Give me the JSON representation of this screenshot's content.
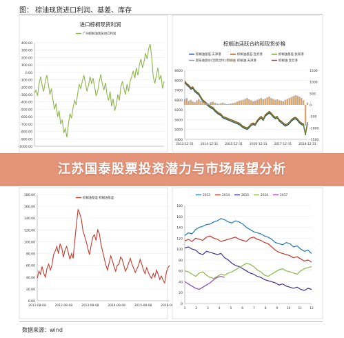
{
  "header": {
    "figure_title": "图：  棕油现货进口利润、基差、库存"
  },
  "banner": {
    "text": "江苏国泰股票投资潜力与市场展望分析"
  },
  "source": {
    "text": "数据来源：wind"
  },
  "colors": {
    "banner_bg": "#e28c6e",
    "green_line": "#8db54b",
    "red_line": "#c0392b"
  },
  "chart_data": [
    {
      "id": "import-profit",
      "type": "line",
      "title": "进口棕榈现货利润",
      "legend": [
        "广州棕榈油现货进口利润"
      ],
      "y_ticks": [
        "400.00",
        "300.00",
        "200.00",
        "100.00",
        "0.00",
        "-100.00",
        "-200.00",
        "-300.00",
        "-400.00",
        "-500.00",
        "-600.00",
        "-700.00",
        "-800.00",
        "-900.00",
        "-1000.00"
      ],
      "ylim": [
        -1000,
        400
      ],
      "series": [
        {
          "color": "#8db54b",
          "values": [
            -280,
            -240,
            -320,
            -150,
            -60,
            -180,
            -260,
            -120,
            -40,
            -160,
            -300,
            -220,
            -380,
            -500,
            -420,
            -600,
            -520,
            -700,
            -640,
            -820,
            -760,
            -880,
            -700,
            -560,
            -620,
            -480,
            -380,
            -440,
            -280,
            -160,
            -220,
            -120,
            -40,
            -140,
            -260,
            -180,
            -60,
            -150,
            -80,
            -200,
            -320,
            -250,
            -120,
            -30,
            -160,
            -240,
            -140,
            -300,
            -380,
            -260,
            -460,
            -360,
            -520,
            -440,
            -300,
            -380,
            -200,
            -120,
            -220,
            -300,
            -160,
            -260,
            -120,
            -60,
            20,
            -80,
            60,
            -40,
            100,
            180,
            60,
            140,
            260,
            180,
            320,
            380,
            200,
            -60,
            -150,
            -40,
            60,
            -100,
            -40,
            -220,
            -120
          ]
        }
      ]
    },
    {
      "id": "palm-basis",
      "type": "line",
      "title": "棕榈油活跃合约和现货价格",
      "legend": [
        "棕榈油基差:天津港",
        "棕榈油基差:连云港",
        "棕榈油基差:张家港",
        "期货收盘价(活跃合约):棕榈油",
        "棕榈油:天津港",
        "棕榈油:连云港"
      ],
      "y_ticks_left": [
        "8600",
        "8000",
        "7400",
        "6800",
        "6200",
        "5600",
        "5000",
        "4400"
      ],
      "y_ticks_right": [
        "1500",
        "1000",
        "500",
        "0",
        "-500",
        "-1000",
        "-1500"
      ],
      "x_ticks": [
        "2013-12-31",
        "2014-12-31",
        "2015-12-31",
        "2016-12-31",
        "2017-12-31",
        "2018-12-31"
      ],
      "series": [
        {
          "name": "期货收盘价(活跃合约):棕榈油",
          "color": "#1f3f7f",
          "values": [
            7850,
            7700,
            7600,
            7450,
            7500,
            7300,
            7200,
            7100,
            6900,
            6700,
            6600,
            6500,
            6400,
            6300,
            6250,
            6100,
            6000,
            5900,
            5850,
            5700,
            5650,
            5600,
            5550,
            5500,
            5450,
            5400,
            5350,
            5300,
            5200,
            5100,
            5050,
            5000,
            5100,
            5250,
            5300,
            5250,
            5450,
            5600,
            5700,
            5550,
            5800,
            5900,
            6000,
            5900,
            5750,
            5650,
            5700,
            5500,
            5400,
            5300,
            5200,
            5250,
            5350,
            5500,
            5600,
            5650,
            5550,
            5400,
            5300,
            5250,
            4650,
            5350
          ]
        },
        {
          "name": "棕榈油:天津港",
          "color": "#8b4513",
          "values": [
            7950,
            7800,
            7700,
            7550,
            7600,
            7400,
            7300,
            7200,
            7000,
            6800,
            6700,
            6600,
            6500,
            6400,
            6350,
            6200,
            6100,
            6000,
            5950,
            5800,
            5750,
            5700,
            5650,
            5600,
            5550,
            5500,
            5450,
            5400,
            5300,
            5200,
            5150,
            5100,
            5200,
            5350,
            5400,
            5350,
            5550,
            5700,
            5800,
            5650,
            5900,
            6000,
            6100,
            6000,
            5850,
            5750,
            5800,
            5600,
            5500,
            5400,
            5300,
            5350,
            5450,
            5600,
            5700,
            5750,
            5650,
            5500,
            5400,
            5350,
            4750,
            5450
          ]
        },
        {
          "name": "棕榈油:连云港",
          "color": "#6b8e23",
          "values": [
            7900,
            7750,
            7650,
            7500,
            7550,
            7350,
            7250,
            7150,
            6950,
            6750,
            6650,
            6550,
            6450,
            6350,
            6300,
            6150,
            6050,
            5950,
            5900,
            5750,
            5700,
            5650,
            5600,
            5550,
            5500,
            5450,
            5400,
            5350,
            5250,
            5150,
            5100,
            5050,
            5150,
            5300,
            5350,
            5300,
            5500,
            5650,
            5750,
            5600,
            5850,
            5950,
            6050,
            5950,
            5800,
            5700,
            5750,
            5550,
            5450,
            5350,
            5250,
            5300,
            5400,
            5550,
            5650,
            5700,
            5600,
            5450,
            5350,
            5300,
            4700,
            5400
          ]
        },
        {
          "name": "棕榈油基差:天津港",
          "color": "#7b9fd4",
          "kind": "bar",
          "values": [
            250,
            300,
            180,
            220,
            150,
            120,
            200,
            260,
            180,
            140,
            100,
            80,
            60,
            120,
            140,
            90,
            60,
            40,
            80,
            100,
            60,
            30,
            40,
            60,
            80,
            100,
            140,
            180,
            200,
            220,
            260,
            300,
            240,
            200,
            160,
            180,
            220,
            260,
            300,
            240,
            280,
            320,
            360,
            300,
            260,
            220,
            240,
            200,
            180,
            160,
            220,
            260,
            300,
            340,
            380,
            420,
            400,
            360,
            300,
            200,
            -900,
            100
          ]
        },
        {
          "name": "棕榈油基差:张家港",
          "color": "#e8a04a",
          "kind": "bar",
          "values": [
            200,
            260,
            140,
            180,
            120,
            100,
            160,
            220,
            150,
            120,
            80,
            60,
            40,
            100,
            120,
            70,
            40,
            20,
            60,
            80,
            40,
            20,
            30,
            50,
            60,
            80,
            120,
            160,
            180,
            200,
            240,
            280,
            220,
            180,
            140,
            160,
            200,
            240,
            280,
            220,
            260,
            300,
            340,
            280,
            240,
            200,
            220,
            180,
            160,
            140,
            200,
            240,
            280,
            320,
            360,
            400,
            380,
            340,
            280,
            180,
            -800,
            80
          ]
        }
      ]
    },
    {
      "id": "basis-history",
      "type": "line",
      "title": "",
      "legend": [
        "棕榈油基差 棕榈油基差"
      ],
      "y_ticks": [
        "180.00",
        "160.00",
        "140.00",
        "120.00",
        "100.00",
        "80.00",
        "60.00",
        "40.00",
        "20.00",
        "0.00"
      ],
      "x_ticks": [
        "2011-08-08",
        "2012-08-08",
        "2013-08-08",
        "2014-08-08",
        "2015-08-08",
        "2016-08-08"
      ],
      "ylim": [
        0,
        180
      ],
      "series": [
        {
          "color": "#c0392b",
          "values": [
            38,
            50,
            45,
            58,
            46,
            40,
            55,
            62,
            52,
            60,
            78,
            84,
            92,
            80,
            96,
            90,
            74,
            86,
            92,
            82,
            70,
            80,
            72,
            102,
            130,
            155,
            148,
            138,
            118,
            110,
            100,
            88,
            78,
            94,
            108,
            112,
            102,
            120,
            114,
            96,
            84,
            72,
            60,
            52,
            64,
            76,
            68,
            58,
            50,
            60,
            62,
            74,
            70,
            60,
            50,
            56,
            64,
            72,
            62,
            55,
            48,
            54,
            60,
            70,
            62,
            52,
            46,
            56,
            48,
            42,
            38,
            46,
            40,
            52,
            45,
            36,
            42,
            35,
            30,
            48,
            56,
            60
          ]
        }
      ]
    },
    {
      "id": "inventory-seasonal",
      "type": "line",
      "title": "",
      "legend": [
        "2013",
        "2014",
        "2015",
        "2016",
        "2017"
      ],
      "y_ticks": [
        "180",
        "160",
        "140",
        "120",
        "100",
        "80",
        "60",
        "40",
        "20",
        "0"
      ],
      "x_ticks": [
        "1",
        "2",
        "3",
        "4",
        "5",
        "6",
        "7",
        "8",
        "9",
        "10",
        "11",
        "12"
      ],
      "ylim": [
        0,
        180
      ],
      "series": [
        {
          "name": "2013",
          "color": "#1f77b4",
          "values": [
            125,
            130,
            128,
            136,
            140,
            142,
            145,
            146,
            150,
            152,
            156,
            154,
            150,
            148,
            152,
            150,
            146,
            140,
            136,
            132,
            130,
            128,
            124,
            122,
            118,
            112,
            110,
            108,
            112,
            110,
            104,
            106,
            100,
            96,
            98,
            92
          ]
        },
        {
          "name": "2014",
          "color": "#c0392b",
          "values": [
            115,
            118,
            114,
            120,
            118,
            116,
            122,
            124,
            120,
            118,
            114,
            116,
            118,
            120,
            122,
            118,
            116,
            114,
            120,
            122,
            118,
            116,
            112,
            110,
            104,
            98,
            94,
            92,
            90,
            88,
            84,
            86,
            82,
            78,
            80,
            76
          ]
        },
        {
          "name": "2015",
          "color": "#3d2c8d",
          "values": [
            102,
            104,
            100,
            98,
            92,
            90,
            96,
            94,
            92,
            90,
            92,
            84,
            80,
            74,
            70,
            68,
            64,
            60,
            56,
            54,
            50,
            48,
            44,
            42,
            40,
            38,
            34,
            36,
            32,
            30,
            28,
            30,
            26,
            24,
            28,
            26
          ]
        },
        {
          "name": "2016",
          "color": "#8db54b",
          "values": [
            60,
            58,
            54,
            50,
            56,
            58,
            52,
            48,
            46,
            50,
            54,
            52,
            56,
            58,
            62,
            66,
            70,
            74,
            72,
            68,
            62,
            58,
            52,
            50,
            54,
            58,
            62,
            64,
            60,
            58,
            56,
            54,
            60,
            64,
            66,
            68
          ]
        },
        {
          "name": "2017",
          "color": "#8e44ad",
          "values": [
            40,
            36,
            32,
            28,
            26,
            30,
            34,
            38,
            44,
            48,
            50,
            48
          ]
        }
      ]
    }
  ]
}
